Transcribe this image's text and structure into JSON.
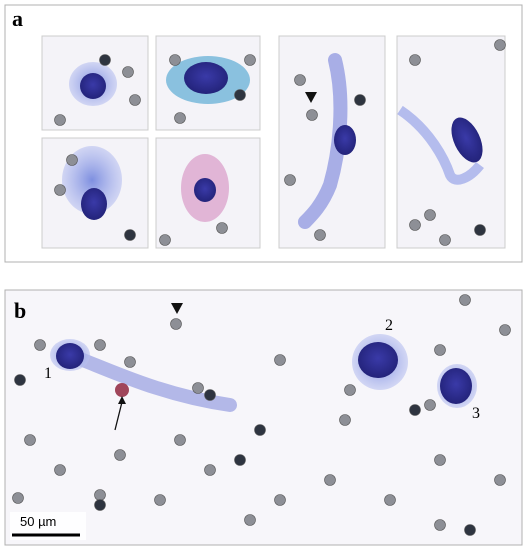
{
  "panels": [
    {
      "label": "a"
    },
    {
      "label": "b",
      "cell_labels": [
        "1",
        "2",
        "3"
      ],
      "scale_bar": "50 µm"
    }
  ]
}
